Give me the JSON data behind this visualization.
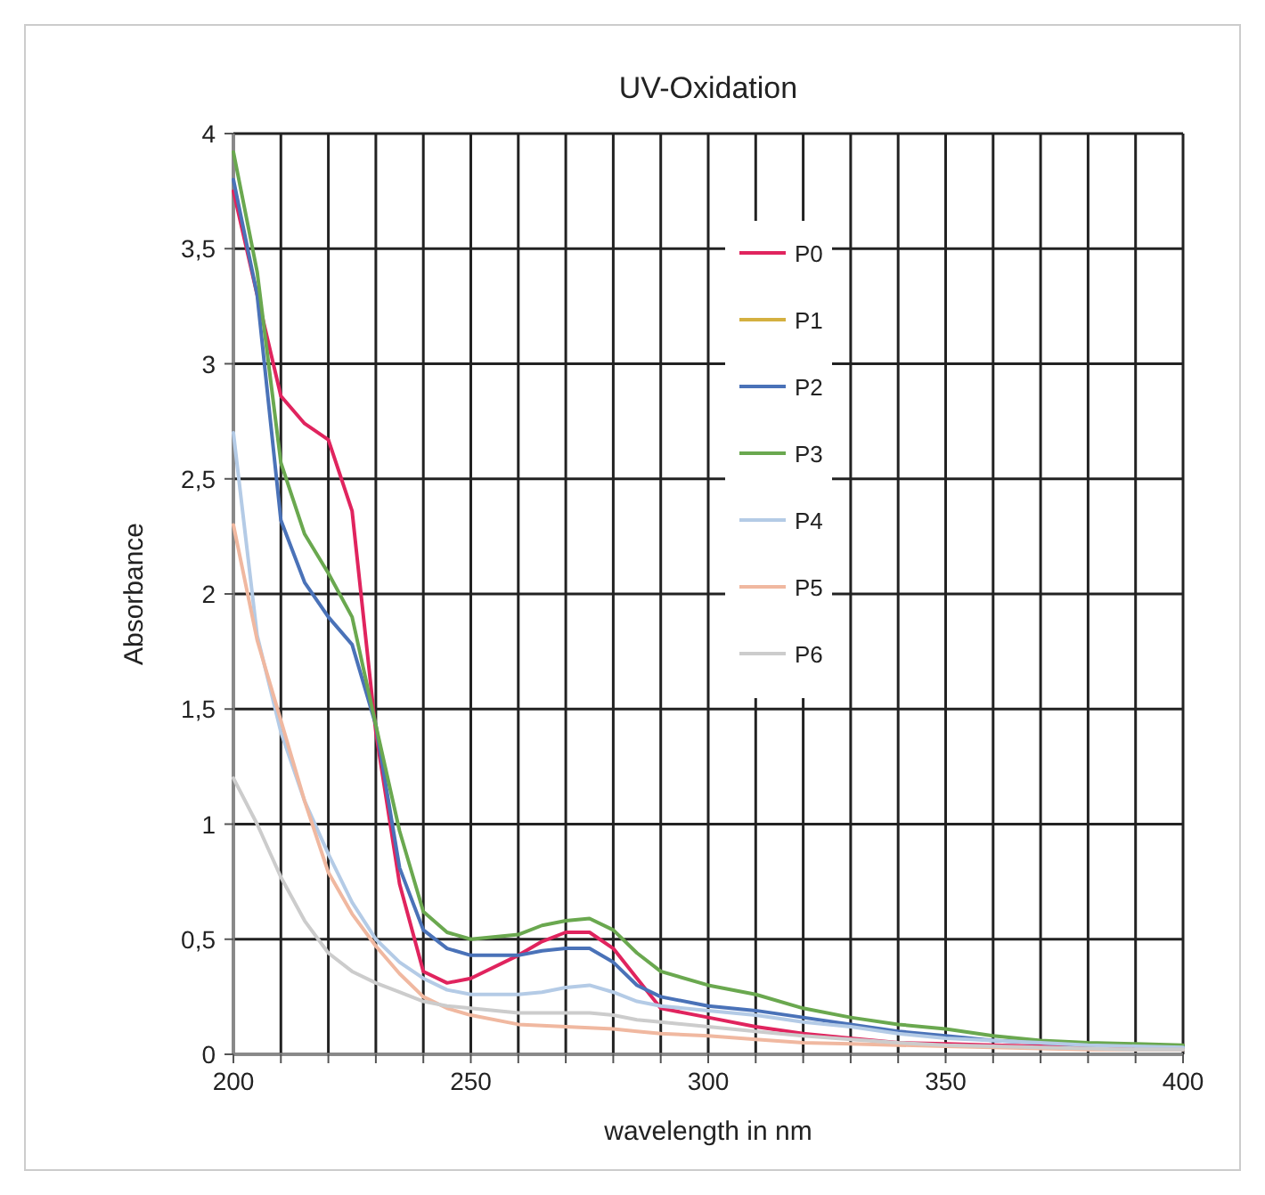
{
  "chart_data": {
    "type": "line",
    "title": "UV-Oxidation",
    "xlabel": "wavelength in nm",
    "ylabel": "Absorbance",
    "x": [
      200,
      205,
      210,
      215,
      220,
      225,
      230,
      235,
      240,
      245,
      250,
      260,
      265,
      270,
      275,
      280,
      285,
      290,
      300,
      310,
      320,
      330,
      340,
      350,
      360,
      370,
      380,
      390,
      400
    ],
    "series": [
      {
        "name": "P0",
        "color": "#e0245e",
        "values": [
          3.75,
          3.3,
          2.86,
          2.74,
          2.67,
          2.36,
          1.4,
          0.74,
          0.36,
          0.31,
          0.33,
          0.43,
          0.49,
          0.53,
          0.53,
          0.46,
          0.33,
          0.2,
          0.16,
          0.12,
          0.09,
          0.07,
          0.05,
          0.045,
          0.04,
          0.035,
          0.03,
          0.03,
          0.03
        ]
      },
      {
        "name": "P1",
        "color": "#d4b040",
        "values": [
          null,
          null,
          null,
          null,
          null,
          null,
          null,
          null,
          null,
          null,
          null,
          null,
          null,
          null,
          null,
          null,
          null,
          null,
          null,
          null,
          null,
          null,
          null,
          null,
          null,
          null,
          null,
          null,
          null
        ]
      },
      {
        "name": "P2",
        "color": "#4a72b8",
        "values": [
          3.8,
          3.3,
          2.32,
          2.05,
          1.9,
          1.78,
          1.43,
          0.81,
          0.54,
          0.46,
          0.43,
          0.43,
          0.45,
          0.46,
          0.46,
          0.4,
          0.3,
          0.25,
          0.21,
          0.19,
          0.16,
          0.13,
          0.1,
          0.08,
          0.06,
          0.05,
          0.04,
          0.04,
          0.035
        ]
      },
      {
        "name": "P3",
        "color": "#6aa84f",
        "values": [
          3.92,
          3.4,
          2.57,
          2.26,
          2.09,
          1.9,
          1.43,
          0.97,
          0.62,
          0.53,
          0.5,
          0.52,
          0.56,
          0.58,
          0.59,
          0.54,
          0.44,
          0.36,
          0.3,
          0.26,
          0.2,
          0.16,
          0.13,
          0.11,
          0.08,
          0.06,
          0.05,
          0.045,
          0.04
        ]
      },
      {
        "name": "P4",
        "color": "#b4cbe6",
        "values": [
          2.7,
          1.82,
          1.4,
          1.1,
          0.87,
          0.66,
          0.5,
          0.4,
          0.33,
          0.28,
          0.26,
          0.26,
          0.27,
          0.29,
          0.3,
          0.27,
          0.23,
          0.21,
          0.19,
          0.17,
          0.14,
          0.12,
          0.09,
          0.07,
          0.06,
          0.05,
          0.04,
          0.035,
          0.03
        ]
      },
      {
        "name": "P5",
        "color": "#f0b8a0",
        "values": [
          2.3,
          1.8,
          1.45,
          1.1,
          0.79,
          0.61,
          0.47,
          0.35,
          0.25,
          0.2,
          0.17,
          0.13,
          0.125,
          0.12,
          0.115,
          0.11,
          0.1,
          0.09,
          0.08,
          0.065,
          0.05,
          0.045,
          0.04,
          0.035,
          0.03,
          0.025,
          0.02,
          0.02,
          0.02
        ]
      },
      {
        "name": "P6",
        "color": "#cccccc",
        "values": [
          1.2,
          1.0,
          0.77,
          0.58,
          0.44,
          0.36,
          0.31,
          0.27,
          0.23,
          0.21,
          0.2,
          0.18,
          0.18,
          0.18,
          0.18,
          0.17,
          0.15,
          0.14,
          0.12,
          0.1,
          0.08,
          0.065,
          0.05,
          0.04,
          0.035,
          0.03,
          0.025,
          0.02,
          0.02
        ]
      }
    ],
    "xlim": [
      200,
      400
    ],
    "xticks": [
      200,
      {
        "value": 210,
        "label": null
      },
      {
        "value": 220,
        "label": null
      },
      {
        "value": 230,
        "label": null
      },
      {
        "value": 240,
        "label": null
      },
      250,
      {
        "value": 260,
        "label": null
      },
      {
        "value": 270,
        "label": null
      },
      {
        "value": 280,
        "label": null
      },
      {
        "value": 290,
        "label": null
      },
      300,
      {
        "value": 310,
        "label": null
      },
      {
        "value": 320,
        "label": null
      },
      {
        "value": 330,
        "label": null
      },
      {
        "value": 340,
        "label": null
      },
      350,
      {
        "value": 360,
        "label": null
      },
      {
        "value": 370,
        "label": null
      },
      {
        "value": 380,
        "label": null
      },
      {
        "value": 390,
        "label": null
      },
      400
    ],
    "ylim": [
      0,
      4
    ],
    "yticks": [
      0,
      {
        "value": 0.5,
        "label": "0,5"
      },
      1,
      {
        "value": 1.5,
        "label": "1,5"
      },
      2,
      {
        "value": 2.5,
        "label": "2,5"
      },
      3,
      {
        "value": 3.5,
        "label": "3,5"
      },
      4
    ],
    "grid": true,
    "legend": "top right",
    "marker": "none",
    "line_style": "solid"
  }
}
